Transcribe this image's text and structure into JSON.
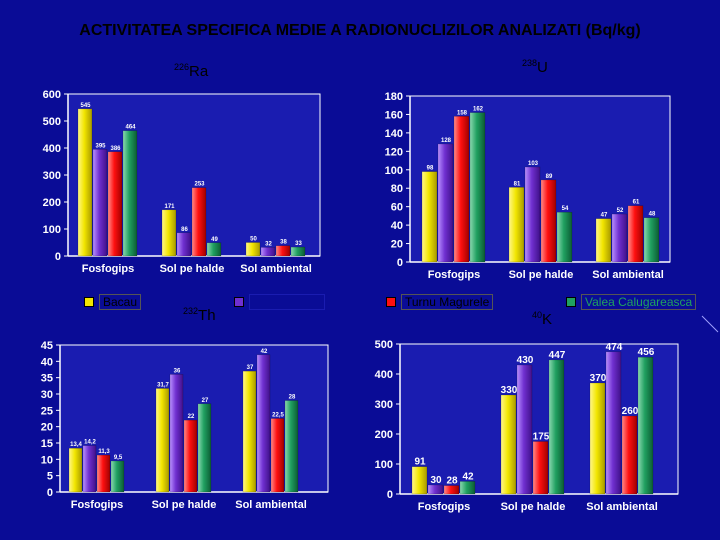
{
  "title": "ACTIVITATEA SPECIFICA MEDIE A RADIONUCLIZILOR ANALIZATI (Bq/kg)",
  "legend": [
    {
      "name": "Bacau",
      "color": "#f2e600"
    },
    {
      "name": "",
      "color": "#7030d0"
    },
    {
      "name": "Turnu Magurele",
      "color": "#ff1010"
    },
    {
      "name": "Valea Calugareasca",
      "color": "#20a060"
    }
  ],
  "chart_data": [
    {
      "type": "bar",
      "nuclide_mass": "226",
      "nuclide": "Ra",
      "categories": [
        "Fosfogips",
        "Sol pe halde",
        "Sol ambiental"
      ],
      "ylim": [
        0,
        600
      ],
      "yticks": [
        0,
        100,
        200,
        300,
        400,
        500,
        600
      ],
      "series": [
        {
          "name": "Bacau",
          "values": [
            545,
            171,
            50
          ]
        },
        {
          "name": "",
          "values": [
            395,
            86,
            32
          ]
        },
        {
          "name": "Turnu Magurele",
          "values": [
            386,
            253,
            38
          ]
        },
        {
          "name": "Valea Calugareasca",
          "values": [
            464,
            49,
            33
          ]
        }
      ]
    },
    {
      "type": "bar",
      "nuclide_mass": "238",
      "nuclide": "U",
      "categories": [
        "Fosfogips",
        "Sol pe halde",
        "Sol ambiental"
      ],
      "ylim": [
        0,
        180
      ],
      "yticks": [
        0,
        20,
        40,
        60,
        80,
        100,
        120,
        140,
        160,
        180
      ],
      "series": [
        {
          "name": "Bacau",
          "values": [
            98,
            81,
            47
          ]
        },
        {
          "name": "",
          "values": [
            128,
            103,
            52
          ]
        },
        {
          "name": "Turnu Magurele",
          "values": [
            158,
            89,
            61
          ]
        },
        {
          "name": "Valea Calugareasca",
          "values": [
            162,
            54,
            48
          ]
        }
      ]
    },
    {
      "type": "bar",
      "nuclide_mass": "232",
      "nuclide": "Th",
      "categories": [
        "Fosfogips",
        "Sol pe halde",
        "Sol ambiental"
      ],
      "ylim": [
        0,
        45
      ],
      "yticks": [
        0,
        5,
        10,
        15,
        20,
        25,
        30,
        35,
        40,
        45
      ],
      "series": [
        {
          "name": "Bacau",
          "values": [
            13.4,
            31.7,
            37
          ]
        },
        {
          "name": "",
          "values": [
            14.2,
            36,
            42
          ]
        },
        {
          "name": "Turnu Magurele",
          "values": [
            11.3,
            22,
            22.5
          ]
        },
        {
          "name": "Valea Calugareasca",
          "values": [
            9.5,
            27,
            28
          ]
        }
      ]
    },
    {
      "type": "bar",
      "nuclide_mass": "40",
      "nuclide": "K",
      "categories": [
        "Fosfogips",
        "Sol pe halde",
        "Sol ambiental"
      ],
      "ylim": [
        0,
        500
      ],
      "yticks": [
        0,
        100,
        200,
        300,
        400,
        500
      ],
      "series": [
        {
          "name": "Bacau",
          "values": [
            91,
            330,
            370
          ]
        },
        {
          "name": "",
          "values": [
            30,
            430,
            474
          ]
        },
        {
          "name": "Turnu Magurele",
          "values": [
            28,
            175,
            260
          ]
        },
        {
          "name": "Valea Calugareasca",
          "values": [
            42,
            447,
            456
          ]
        }
      ]
    }
  ]
}
